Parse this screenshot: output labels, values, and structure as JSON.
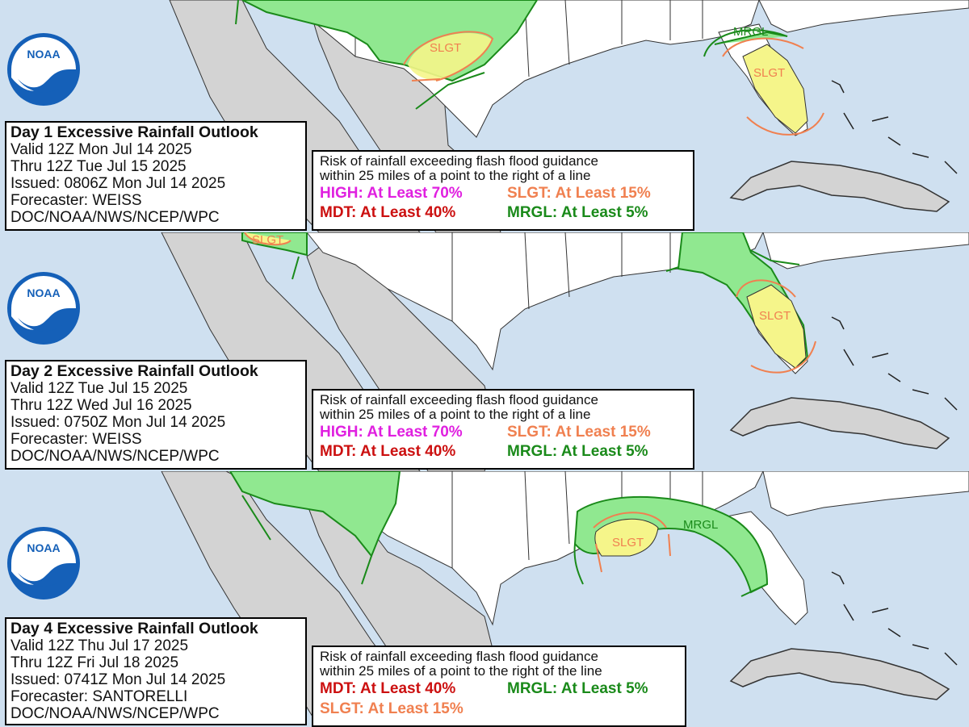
{
  "colors": {
    "ocean": "#cfe0f0",
    "mexico": "#d3d3d3",
    "us_land": "#ffffff",
    "mrgl_fill": "#90e890",
    "mrgl_line": "#1a8a1a",
    "slgt_fill": "#f5f58a",
    "slgt_line": "#f08050",
    "high_text": "#e020e0",
    "slgt_text": "#f08050",
    "mdt_text": "#cc1010",
    "mrgl_text": "#1a8a1a",
    "noaa_blue": "#1560b8"
  },
  "logo": {
    "text": "NOAA",
    "icon": "noaa-logo-icon"
  },
  "panels": [
    {
      "id": "day1",
      "info": {
        "title": "Day 1 Excessive Rainfall Outlook",
        "valid": "Valid 12Z Mon Jul 14 2025",
        "thru": "Thru 12Z Tue Jul 15 2025",
        "issued": "Issued: 0806Z Mon Jul 14 2025",
        "forecaster": "Forecaster: WEISS",
        "agency": "DOC/NOAA/NWS/NCEP/WPC"
      },
      "legend": {
        "desc1": "Risk of rainfall exceeding flash flood guidance",
        "desc2": "within 25 miles of a point to the right of a line",
        "high": "HIGH: At Least 70%",
        "slgt": "SLGT: At Least 15%",
        "mdt": "MDT: At Least 40%",
        "mrgl": "MRGL: At Least 5%"
      },
      "map_labels": {
        "slgt_tx": "SLGT",
        "mrgl_fl": "MRGL",
        "slgt_fl": "SLGT"
      }
    },
    {
      "id": "day2",
      "info": {
        "title": "Day 2 Excessive Rainfall Outlook",
        "valid": "Valid 12Z Tue Jul 15 2025",
        "thru": "Thru 12Z Wed Jul 16 2025",
        "issued": "Issued: 0750Z Mon Jul 14 2025",
        "forecaster": "Forecaster: WEISS",
        "agency": "DOC/NOAA/NWS/NCEP/WPC"
      },
      "legend": {
        "desc1": "Risk of rainfall exceeding flash flood guidance",
        "desc2": "within 25 miles of a point to the right of a line",
        "high": "HIGH: At Least 70%",
        "slgt": "SLGT: At Least 15%",
        "mdt": "MDT: At Least 40%",
        "mrgl": "MRGL: At Least 5%"
      },
      "map_labels": {
        "slgt_nm": "SLGT",
        "slgt_fl": "SLGT"
      }
    },
    {
      "id": "day4",
      "info": {
        "title": "Day 4 Excessive Rainfall Outlook",
        "valid": "Valid 12Z Thu Jul 17 2025",
        "thru": "Thru 12Z Fri Jul 18 2025",
        "issued": "Issued: 0741Z Mon Jul 14 2025",
        "forecaster": "Forecaster: SANTORELLI",
        "agency": "DOC/NOAA/NWS/NCEP/WPC"
      },
      "legend": {
        "desc1": "Risk of rainfall exceeding flash flood guidance",
        "desc2": "within 25 miles of a point to the right of the line",
        "mdt": "MDT: At Least 40%",
        "mrgl": "MRGL: At Least 5%",
        "slgt": "SLGT: At Least 15%"
      },
      "map_labels": {
        "mrgl_gulf": "MRGL",
        "slgt_la": "SLGT"
      }
    }
  ]
}
